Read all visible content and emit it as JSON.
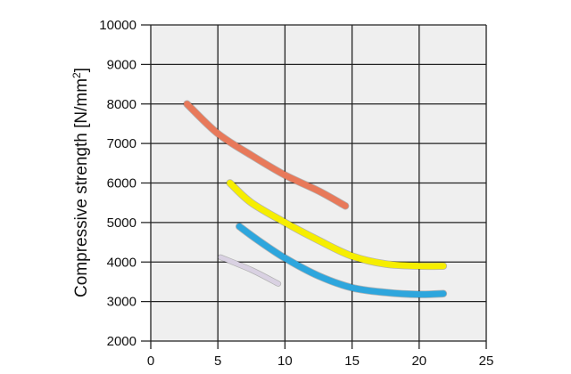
{
  "chart_data": {
    "type": "line",
    "title": "",
    "xlabel": "",
    "ylabel": "Compressive strength [N/mm",
    "ylabel_sup": "2",
    "ylabel_end": "]",
    "xlim": [
      0,
      25
    ],
    "ylim": [
      2000,
      10000
    ],
    "xticks": [
      0,
      5,
      10,
      15,
      20,
      25
    ],
    "yticks": [
      2000,
      3000,
      4000,
      5000,
      6000,
      7000,
      8000,
      9000,
      10000
    ],
    "grid": true,
    "series": [
      {
        "name": "orange",
        "color": "#e8795a",
        "width": 7,
        "x": [
          2.7,
          5,
          7.5,
          10,
          12.5,
          14.5
        ],
        "y": [
          8000,
          7250,
          6700,
          6200,
          5800,
          5420
        ]
      },
      {
        "name": "yellow",
        "color": "#f6ee00",
        "width": 7,
        "x": [
          5.9,
          7.5,
          10,
          12.5,
          15,
          17.5,
          20,
          21.8
        ],
        "y": [
          6000,
          5500,
          5000,
          4550,
          4150,
          3950,
          3900,
          3900
        ]
      },
      {
        "name": "blue",
        "color": "#2ea6dd",
        "width": 7,
        "x": [
          6.6,
          8,
          10,
          12.5,
          15,
          17.5,
          20,
          21.8
        ],
        "y": [
          4900,
          4550,
          4100,
          3650,
          3350,
          3230,
          3180,
          3200
        ]
      },
      {
        "name": "lavender",
        "color": "#d9d1e2",
        "width": 5,
        "x": [
          5.2,
          7.5,
          9.5
        ],
        "y": [
          4120,
          3800,
          3450
        ]
      }
    ]
  }
}
